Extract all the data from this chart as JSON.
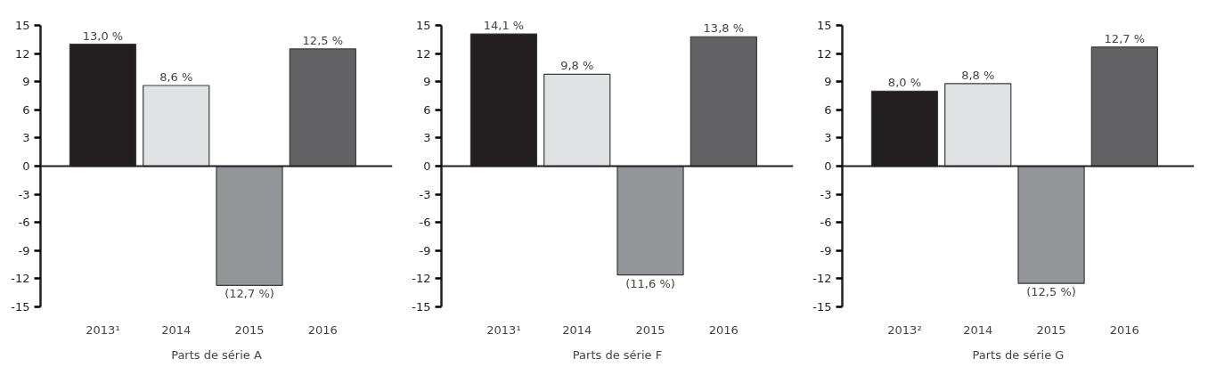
{
  "chart_data": [
    {
      "type": "bar",
      "xlabel": "Parts de série A",
      "categories": [
        "2013¹",
        "2014",
        "2015",
        "2016"
      ],
      "values": [
        13.0,
        8.6,
        -12.7,
        12.5
      ],
      "colors": [
        "#231f20",
        "#e1e2e4",
        "#939598",
        "#626264"
      ],
      "value_labels": [
        "13,0 %",
        "8,6 %",
        "(12,7 %)",
        "12,5 %"
      ],
      "ylim": [
        -15,
        15
      ],
      "yticks": [
        -15,
        -12,
        -9,
        -6,
        -3,
        0,
        3,
        6,
        9,
        12,
        15
      ]
    },
    {
      "type": "bar",
      "xlabel": "Parts de série F",
      "categories": [
        "2013¹",
        "2014",
        "2015",
        "2016"
      ],
      "values": [
        14.1,
        9.8,
        -11.6,
        13.8
      ],
      "colors": [
        "#231f20",
        "#e1e2e4",
        "#939598",
        "#626264"
      ],
      "value_labels": [
        "14,1 %",
        "9,8 %",
        "(11,6 %)",
        "13,8 %"
      ],
      "ylim": [
        -15,
        15
      ],
      "yticks": [
        -15,
        -12,
        -9,
        -6,
        -3,
        0,
        3,
        6,
        9,
        12,
        15
      ]
    },
    {
      "type": "bar",
      "xlabel": "Parts de série G",
      "categories": [
        "2013²",
        "2014",
        "2015",
        "2016"
      ],
      "values": [
        8.0,
        8.8,
        -12.5,
        12.7
      ],
      "colors": [
        "#231f20",
        "#e1e2e4",
        "#939598",
        "#626264"
      ],
      "value_labels": [
        "8,0 %",
        "8,8 %",
        "(12,5 %)",
        "12,7 %"
      ],
      "ylim": [
        -15,
        15
      ],
      "yticks": [
        -15,
        -12,
        -9,
        -6,
        -3,
        0,
        3,
        6,
        9,
        12,
        15
      ]
    }
  ]
}
